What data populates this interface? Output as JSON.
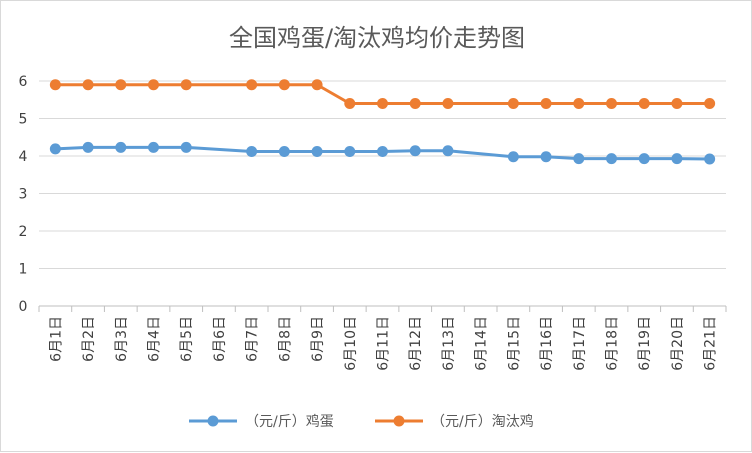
{
  "chart_data": {
    "type": "line",
    "title": "全国鸡蛋/淘汰鸡均价走势图",
    "xlabel": "",
    "ylabel": "",
    "ylim": [
      0,
      6
    ],
    "yticks": [
      "0",
      "1",
      "2",
      "3",
      "4",
      "5",
      "6"
    ],
    "grid": true,
    "legend_position": "bottom",
    "categories": [
      "6月1日",
      "6月2日",
      "6月3日",
      "6月4日",
      "6月5日",
      "6月6日",
      "6月7日",
      "6月8日",
      "6月9日",
      "6月10日",
      "6月11日",
      "6月12日",
      "6月13日",
      "6月14日",
      "6月15日",
      "6月16日",
      "6月17日",
      "6月18日",
      "6月19日",
      "6月20日",
      "6月21日"
    ],
    "series": [
      {
        "name": "（元/斤）鸡蛋",
        "color": "#5b9bd5",
        "values": [
          4.19,
          4.23,
          4.23,
          4.23,
          4.23,
          null,
          4.12,
          4.12,
          4.12,
          4.12,
          4.12,
          4.14,
          4.14,
          null,
          3.98,
          3.98,
          3.93,
          3.93,
          3.93,
          3.93,
          3.92
        ]
      },
      {
        "name": "（元/斤）淘汰鸡",
        "color": "#ed7d31",
        "values": [
          5.9,
          5.9,
          5.9,
          5.9,
          5.9,
          null,
          5.9,
          5.9,
          5.9,
          5.4,
          5.4,
          5.4,
          5.4,
          null,
          5.4,
          5.4,
          5.4,
          5.4,
          5.4,
          5.4,
          5.4
        ]
      }
    ]
  }
}
